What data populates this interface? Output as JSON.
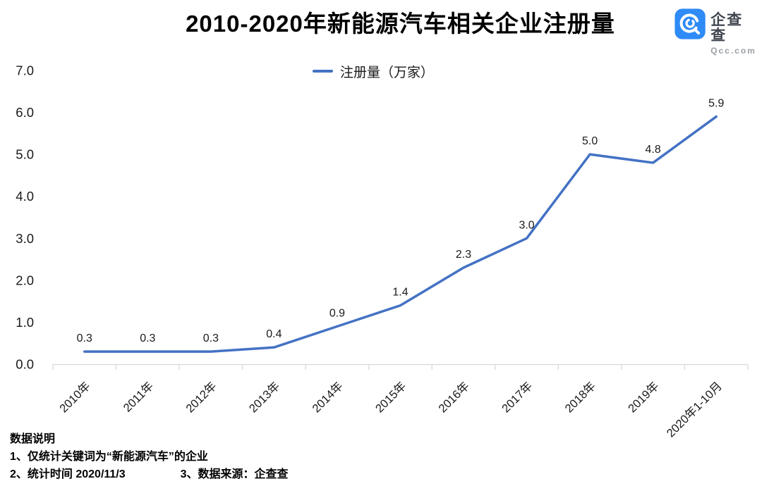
{
  "page": {
    "title": "2010-2020年新能源汽车相关企业注册量"
  },
  "logo": {
    "name": "企查查",
    "domain": "Qcc.com",
    "brand_color": "#2E8BF7"
  },
  "legend": {
    "label": "注册量（万家）"
  },
  "notes": {
    "heading": "数据说明",
    "line1": "1、仅统计关键词为“新能源汽车”的企业",
    "line2_left": "2、统计时间 2020/11/3",
    "line2_right": "3、数据来源：企查查"
  },
  "chart_data": {
    "type": "line",
    "title": "2010-2020年新能源汽车相关企业注册量",
    "series_name": "注册量（万家）",
    "categories": [
      "2010年",
      "2011年",
      "2012年",
      "2013年",
      "2014年",
      "2015年",
      "2016年",
      "2017年",
      "2018年",
      "2019年",
      "2020年1-10月"
    ],
    "values": [
      0.3,
      0.3,
      0.3,
      0.4,
      0.9,
      1.4,
      2.3,
      3.0,
      5.0,
      4.8,
      5.9
    ],
    "data_labels": [
      "0.3",
      "0.3",
      "0.3",
      "0.4",
      "0.9",
      "1.4",
      "2.3",
      "3.0",
      "5.0",
      "4.8",
      "5.9"
    ],
    "xlabel": "",
    "ylabel": "",
    "ylim": [
      0.0,
      7.0
    ],
    "ytick_step": 1.0,
    "yticks": [
      "0.0",
      "1.0",
      "2.0",
      "3.0",
      "4.0",
      "5.0",
      "6.0",
      "7.0"
    ],
    "grid": false,
    "legend_position": "top-center",
    "line_color": "#4472C4",
    "axis_color": "#D9D9D9",
    "text_color": "#1a1a1a"
  }
}
